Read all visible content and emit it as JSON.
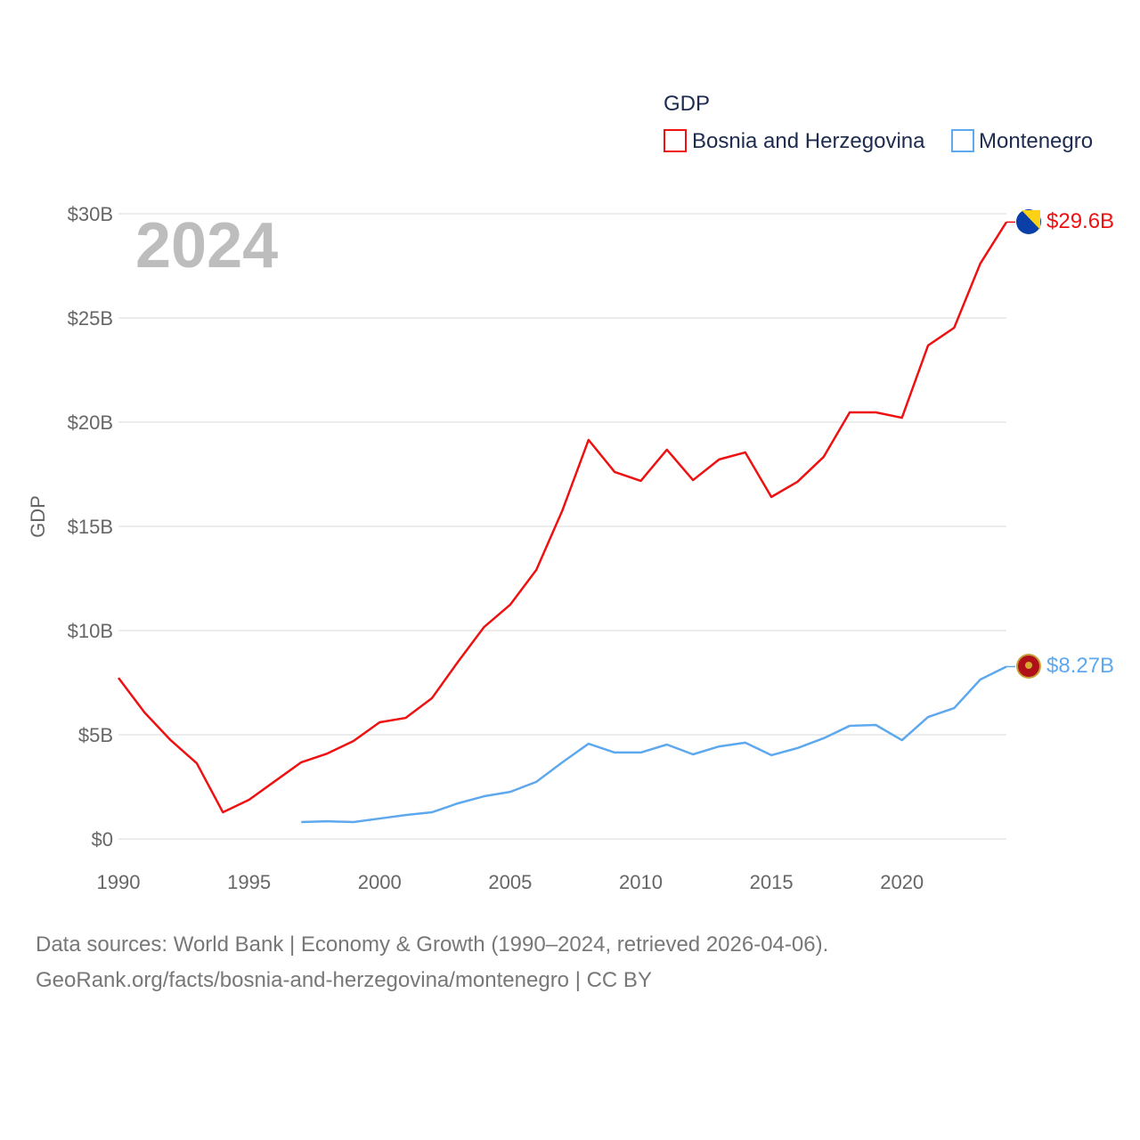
{
  "chart_data": {
    "type": "line",
    "title": "GDP",
    "ylabel": "GDP",
    "xlabel": "",
    "year_label": "2024",
    "xlim": [
      1990,
      2024
    ],
    "ylim": [
      0,
      30
    ],
    "x_ticks": [
      "1990",
      "1995",
      "2000",
      "2005",
      "2010",
      "2015",
      "2020"
    ],
    "y_ticks": [
      {
        "v": 0,
        "label": "$0"
      },
      {
        "v": 5,
        "label": "$5B"
      },
      {
        "v": 10,
        "label": "$10B"
      },
      {
        "v": 15,
        "label": "$15B"
      },
      {
        "v": 20,
        "label": "$20B"
      },
      {
        "v": 25,
        "label": "$25B"
      },
      {
        "v": 30,
        "label": "$30B"
      }
    ],
    "grid": true,
    "legend_position": "top-right",
    "series": [
      {
        "name": "Bosnia and Herzegovina",
        "color": "#ee1111",
        "end_label": "$29.6B",
        "start_year": 1990,
        "values": [
          7.73,
          6.07,
          4.74,
          3.63,
          1.28,
          1.88,
          2.78,
          3.68,
          4.1,
          4.7,
          5.6,
          5.81,
          6.75,
          8.5,
          10.17,
          11.24,
          12.91,
          15.77,
          19.15,
          17.61,
          17.18,
          18.68,
          17.22,
          18.21,
          18.55,
          16.41,
          17.14,
          18.33,
          20.47,
          20.47,
          20.21,
          23.68,
          24.53,
          27.61,
          29.6
        ]
      },
      {
        "name": "Montenegro",
        "color": "#5ea8ee",
        "end_label": "$8.27B",
        "start_year": 1997,
        "values": [
          0.81,
          0.85,
          0.81,
          0.98,
          1.15,
          1.28,
          1.71,
          2.05,
          2.26,
          2.74,
          3.68,
          4.57,
          4.15,
          4.15,
          4.53,
          4.06,
          4.44,
          4.62,
          4.02,
          4.36,
          4.83,
          5.43,
          5.47,
          4.74,
          5.85,
          6.28,
          7.65,
          8.27
        ]
      }
    ]
  },
  "footer": {
    "line1": "Data sources: World Bank | Economy & Growth (1990–2024, retrieved 2026-04-06).",
    "line2": "GeoRank.org/facts/bosnia-and-herzegovina/montenegro | CC BY"
  }
}
